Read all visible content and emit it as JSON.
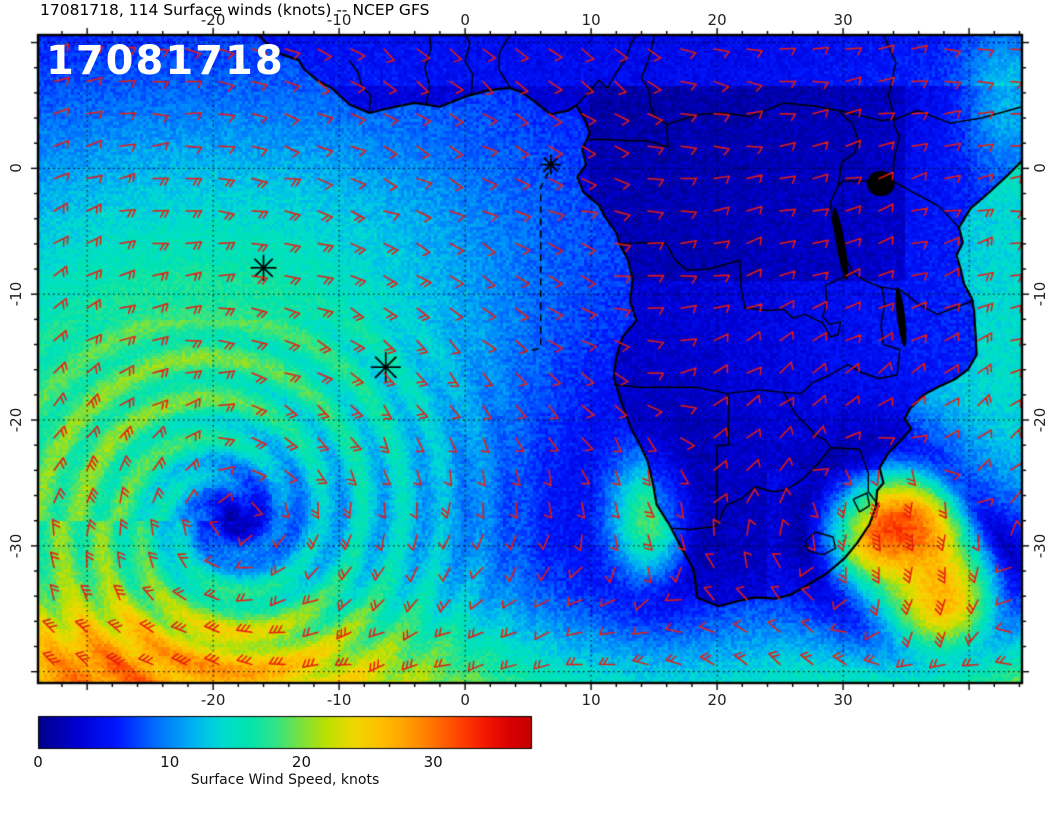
{
  "title": "17081718, 114 Surface winds (knots) -- NCEP GFS",
  "overlay_label": "17081718",
  "axes": {
    "lon_range": [
      -33.9,
      44.2
    ],
    "lat_range": [
      -40.9,
      10.6
    ],
    "lon_ticks": [
      {
        "value": -20,
        "label": "-20"
      },
      {
        "value": -10,
        "label": "-10"
      },
      {
        "value": 0,
        "label": "0"
      },
      {
        "value": 10,
        "label": "10"
      },
      {
        "value": 20,
        "label": "20"
      },
      {
        "value": 30,
        "label": "30"
      }
    ],
    "lat_ticks": [
      {
        "value": 0,
        "label": "0"
      },
      {
        "value": -10,
        "label": "-10"
      },
      {
        "value": -20,
        "label": "-20"
      },
      {
        "value": -30,
        "label": "-30"
      }
    ],
    "grid_lon": [
      -30,
      -20,
      -10,
      0,
      10,
      20,
      30,
      40
    ],
    "grid_lat": [
      10,
      0,
      -10,
      -20,
      -30,
      -40
    ]
  },
  "markers": [
    {
      "lon": 6.8,
      "lat": 0.3,
      "size": 10
    },
    {
      "lon": -16.0,
      "lat": -7.9,
      "size": 13
    },
    {
      "lon": -6.3,
      "lat": -15.8,
      "size": 15
    }
  ],
  "track": [
    [
      6.6,
      -0.3
    ],
    [
      6.0,
      -1.5
    ],
    [
      6.0,
      -14.3
    ],
    [
      4.6,
      -14.6
    ]
  ],
  "colorbar": {
    "title": "Surface Wind Speed, knots",
    "min": 0,
    "max": 37.5,
    "ticks": [
      {
        "value": 0,
        "label": "0"
      },
      {
        "value": 10,
        "label": "10"
      },
      {
        "value": 20,
        "label": "20"
      },
      {
        "value": 30,
        "label": "30"
      }
    ],
    "stops": [
      [
        0,
        "#000089"
      ],
      [
        3,
        "#0000d5"
      ],
      [
        6,
        "#0018ff"
      ],
      [
        9,
        "#0070ff"
      ],
      [
        12,
        "#00b8f0"
      ],
      [
        14,
        "#00dcd0"
      ],
      [
        16,
        "#00e4ae"
      ],
      [
        18,
        "#30e488"
      ],
      [
        20,
        "#7ce23c"
      ],
      [
        22,
        "#c0e000"
      ],
      [
        24,
        "#f0d800"
      ],
      [
        26,
        "#ffc000"
      ],
      [
        28,
        "#ffa000"
      ],
      [
        30,
        "#ff7400"
      ],
      [
        32,
        "#ff4400"
      ],
      [
        34,
        "#f41800"
      ],
      [
        36,
        "#d80000"
      ],
      [
        37.5,
        "#c40000"
      ]
    ]
  },
  "colors": {
    "barb": "#e81c10",
    "coast": "#000000",
    "grid": "#000000",
    "marker": "#000000",
    "frame": "#000000",
    "overlay_text": "#ffffff",
    "title_text": "#000000",
    "page_bg": "#ffffff"
  }
}
